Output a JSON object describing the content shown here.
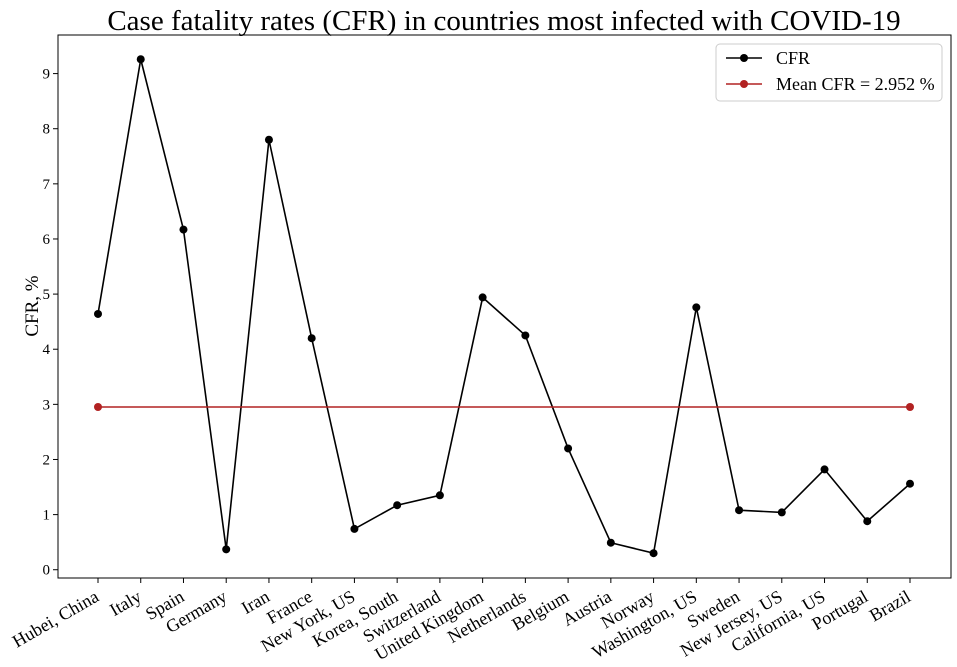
{
  "chart_data": {
    "type": "line",
    "title": "Case fatality rates (CFR) in countries most infected with COVID-19",
    "ylabel": "CFR, %",
    "xlabel": "",
    "ylim": [
      -0.15,
      9.7
    ],
    "yticks": [
      0,
      1,
      2,
      3,
      4,
      5,
      6,
      7,
      8,
      9
    ],
    "grid": false,
    "legend_position": "top-right",
    "categories": [
      "Hubei, China",
      "Italy",
      "Spain",
      "Germany",
      "Iran",
      "France",
      "New York, US",
      "Korea, South",
      "Switzerland",
      "United Kingdom",
      "Netherlands",
      "Belgium",
      "Austria",
      "Norway",
      "Washington, US",
      "Sweden",
      "New Jersey, US",
      "California, US",
      "Portugal",
      "Brazil"
    ],
    "series": [
      {
        "name": "CFR",
        "color": "#000000",
        "values": [
          4.64,
          9.26,
          6.17,
          0.37,
          7.8,
          4.2,
          0.74,
          1.17,
          1.35,
          4.94,
          4.25,
          2.2,
          0.49,
          0.3,
          4.76,
          1.08,
          1.04,
          1.82,
          0.88,
          1.56
        ]
      },
      {
        "name": "Mean CFR = 2.952 %",
        "color": "#b22222",
        "x": [
          "Hubei, China",
          "Brazil"
        ],
        "values": [
          2.952,
          2.952
        ]
      }
    ]
  }
}
